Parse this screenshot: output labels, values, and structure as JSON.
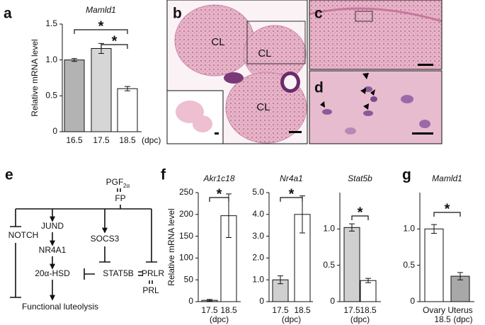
{
  "panel_labels": [
    "a",
    "b",
    "c",
    "d",
    "e",
    "f",
    "g"
  ],
  "histology": {
    "labels": [
      "CL",
      "CL",
      "CL"
    ]
  },
  "diagram": {
    "nodes": [
      "PGF",
      "FP",
      "JUND",
      "NR4A1",
      "20α-HSD",
      "SOCS3",
      "STAT5B",
      "PRLR",
      "PRL",
      "NOTCH",
      "Functional luteolysis"
    ],
    "ligand_subscript": "2α"
  },
  "chart_data": [
    {
      "type": "bar",
      "title": "Mamld1",
      "y_label": "Relative mRNA level",
      "categories": [
        "16.5",
        "17.5",
        "18.5"
      ],
      "x_unit": "(dpc)",
      "values": [
        1.0,
        1.16,
        0.6
      ],
      "errors": [
        0.02,
        0.07,
        0.03
      ],
      "colors": [
        "#b3b3b3",
        "#d6d6d6",
        "#ffffff"
      ],
      "ylim": [
        0,
        1.5
      ],
      "yticks": [
        0,
        0.5,
        {
          "value": 1,
          "label": "1.0"
        },
        1.5
      ],
      "significance": [
        "*",
        "*"
      ]
    },
    {
      "type": "bar",
      "title": "Akr1c18",
      "y_label": "Relative mRNA level",
      "categories": [
        "17.5",
        "18.5"
      ],
      "x_unit": "(dpc)",
      "values": [
        3,
        197
      ],
      "errors": [
        2,
        50
      ],
      "colors": [
        "#d0d0d0",
        "#ffffff"
      ],
      "ylim": [
        0,
        250
      ],
      "yticks": [
        0,
        50,
        100,
        150,
        200,
        250
      ],
      "significance": [
        "*"
      ]
    },
    {
      "type": "bar",
      "title": "Nr4a1",
      "categories": [
        "17.5",
        "18.5"
      ],
      "x_unit": "(dpc)",
      "values": [
        1.0,
        4.0
      ],
      "errors": [
        0.18,
        0.85
      ],
      "colors": [
        "#d0d0d0",
        "#ffffff"
      ],
      "ylim": [
        0,
        5
      ],
      "yticks": [
        0,
        {
          "value": 1,
          "label": "1.0"
        },
        {
          "value": 2,
          "label": "2.0"
        },
        {
          "value": 3,
          "label": "3.0"
        },
        {
          "value": 4,
          "label": "4.0"
        },
        {
          "value": 5,
          "label": "5.0"
        }
      ],
      "significance": [
        "*"
      ]
    },
    {
      "type": "bar",
      "title": "Stat5b",
      "categories": [
        "17.5",
        "18.5"
      ],
      "x_unit": "(dpc)",
      "values": [
        1.02,
        0.29
      ],
      "errors": [
        0.05,
        0.03
      ],
      "colors": [
        "#d0d0d0",
        "#ffffff"
      ],
      "ylim": [
        0,
        1.5
      ],
      "yticks": [
        0,
        0.5,
        {
          "value": 1,
          "label": "1.0"
        }
      ],
      "significance": [
        "*"
      ]
    },
    {
      "type": "bar",
      "title": "Mamld1",
      "categories": [
        "Ovary",
        "Uterus"
      ],
      "x_sublabel": "18.5",
      "x_unit": "(dpc)",
      "values": [
        1.0,
        0.35
      ],
      "errors": [
        0.06,
        0.05
      ],
      "colors": [
        "#ffffff",
        "#a8a8a8"
      ],
      "ylim": [
        0,
        1.5
      ],
      "yticks": [
        0,
        0.5,
        {
          "value": 1,
          "label": "1.0"
        }
      ],
      "significance": [
        "*"
      ]
    }
  ]
}
